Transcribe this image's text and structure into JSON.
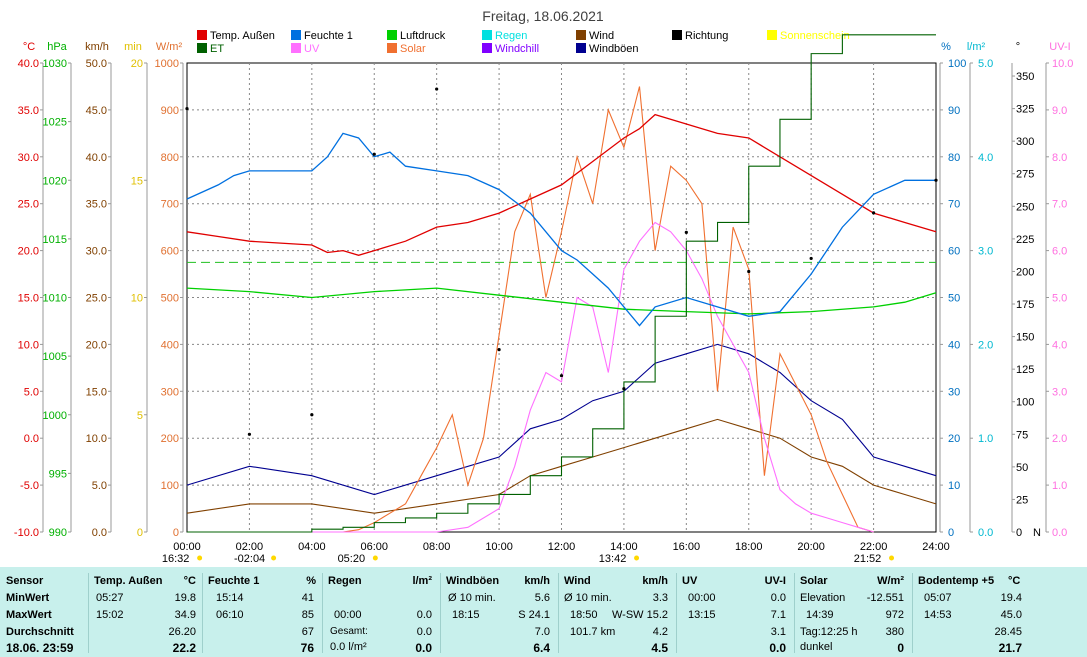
{
  "chart_data": {
    "type": "line",
    "title": "Freitag, 18.06.2021",
    "x_ticks": [
      "00:00",
      "02:00",
      "04:00",
      "06:00",
      "08:00",
      "10:00",
      "12:00",
      "14:00",
      "16:00",
      "18:00",
      "20:00",
      "22:00",
      "24:00"
    ],
    "sun_events": [
      {
        "time": "16:32",
        "x": -0.3
      },
      {
        "time": "-02:04",
        "x": 2.07
      },
      {
        "time": "05:20",
        "x": 5.33
      },
      {
        "time": "13:42",
        "x": 13.7
      },
      {
        "time": "21:52",
        "x": 21.87
      }
    ],
    "left_axes": [
      {
        "unit": "°C",
        "color": "#e00000",
        "min": -10,
        "max": 40,
        "ticks": [
          "40.0",
          "35.0",
          "30.0",
          "25.0",
          "20.0",
          "15.0",
          "10.0",
          "5.0",
          "0.0",
          "-5.0",
          "-10.0"
        ]
      },
      {
        "unit": "hPa",
        "color": "#00b000",
        "min": 990,
        "max": 1030,
        "ticks": [
          "1030",
          "1025",
          "1020",
          "1015",
          "1010",
          "1005",
          "1000",
          "995",
          "990"
        ]
      },
      {
        "unit": "km/h",
        "color": "#804000",
        "min": 0,
        "max": 50,
        "ticks": [
          "50.0",
          "45.0",
          "40.0",
          "35.0",
          "30.0",
          "25.0",
          "20.0",
          "15.0",
          "10.0",
          "5.0",
          "0.0"
        ]
      },
      {
        "unit": "min",
        "color": "#e0c000",
        "min": 0,
        "max": 20,
        "ticks": [
          "20",
          "15",
          "10",
          "5",
          "0"
        ]
      },
      {
        "unit": "W/m²",
        "color": "#e07030",
        "min": 0,
        "max": 1000,
        "ticks": [
          "1000",
          "900",
          "800",
          "700",
          "600",
          "500",
          "400",
          "300",
          "200",
          "100",
          "0"
        ]
      }
    ],
    "right_axes": [
      {
        "unit": "%",
        "color": "#0070c0",
        "min": 0,
        "max": 100,
        "ticks": [
          "100",
          "90",
          "80",
          "70",
          "60",
          "50",
          "40",
          "30",
          "20",
          "10",
          "0"
        ]
      },
      {
        "unit": "l/m²",
        "color": "#00b8d0",
        "min": 0,
        "max": 5,
        "ticks": [
          "5.0",
          "4.0",
          "3.0",
          "2.0",
          "1.0",
          "0.0"
        ]
      },
      {
        "unit": "°",
        "color": "#000000",
        "min": 0,
        "max": 360,
        "ticks": [
          "350",
          "325",
          "300",
          "275",
          "250",
          "225",
          "200",
          "175",
          "150",
          "125",
          "100",
          "75",
          "50",
          "25",
          "0"
        ],
        "zero_label": "N"
      },
      {
        "unit": "UV-I",
        "color": "#ff70e0",
        "min": 0,
        "max": 10,
        "ticks": [
          "10.0",
          "9.0",
          "8.0",
          "7.0",
          "6.0",
          "5.0",
          "4.0",
          "3.0",
          "2.0",
          "1.0",
          "0.0"
        ]
      }
    ],
    "legend": [
      {
        "label": "Temp. Außen",
        "color": "#e00000"
      },
      {
        "label": "Feuchte 1",
        "color": "#0070e0"
      },
      {
        "label": "Luftdruck",
        "color": "#00d000"
      },
      {
        "label": "Regen",
        "color": "#00e0e0"
      },
      {
        "label": "Wind",
        "color": "#804000"
      },
      {
        "label": "Richtung",
        "color": "#000000"
      },
      {
        "label": "Sonnenschein",
        "color": "#ffff00"
      },
      {
        "label": "ET",
        "color": "#006000"
      },
      {
        "label": "UV",
        "color": "#ff70ff"
      },
      {
        "label": "Solar",
        "color": "#f07030"
      },
      {
        "label": "Windchill",
        "color": "#8000ff"
      },
      {
        "label": "Windböen",
        "color": "#000090"
      }
    ],
    "series": [
      {
        "name": "Temp. Außen",
        "unit": "°C",
        "x": [
          0,
          1,
          2,
          3,
          4,
          4.5,
          5,
          5.5,
          6,
          7,
          8,
          9,
          10,
          11,
          12,
          13,
          14,
          14.5,
          15,
          16,
          17,
          18,
          19,
          20,
          21,
          22,
          23,
          24
        ],
        "y": [
          22,
          21.5,
          21,
          20.8,
          20.6,
          19.8,
          20,
          19.5,
          20,
          21,
          22.5,
          23,
          24,
          25.5,
          27,
          29.5,
          32,
          33,
          34.5,
          33.5,
          32.5,
          32,
          30,
          28,
          26,
          24,
          23,
          22
        ]
      },
      {
        "name": "Feuchte 1",
        "unit": "%",
        "x": [
          0,
          1,
          1.5,
          2,
          3,
          4,
          4.5,
          5,
          5.5,
          6,
          6.5,
          7,
          8,
          9,
          10,
          11,
          12,
          12.5,
          13,
          13.5,
          14,
          14.5,
          15,
          16,
          17,
          18,
          19,
          20,
          21,
          22,
          23,
          24
        ],
        "y": [
          71,
          74,
          76,
          77,
          77,
          77,
          80,
          85,
          84,
          80,
          81,
          78,
          77,
          76,
          73,
          68,
          60,
          58,
          55,
          52,
          48,
          44,
          48,
          50,
          48,
          46,
          47,
          55,
          65,
          72,
          75,
          75
        ]
      },
      {
        "name": "Luftdruck",
        "unit": "hPa",
        "x": [
          0,
          2,
          4,
          6,
          8,
          10,
          12,
          14,
          16,
          18,
          20,
          22,
          23,
          24
        ],
        "y": [
          1010.8,
          1010.5,
          1010,
          1010.5,
          1010.8,
          1010.2,
          1009.6,
          1009,
          1008.8,
          1008.6,
          1008.8,
          1009.2,
          1009.6,
          1010.4
        ]
      },
      {
        "name": "Solar",
        "unit": "W/m²",
        "x": [
          0,
          5,
          5.5,
          6,
          6.5,
          7,
          7.5,
          8,
          8.5,
          9,
          9.5,
          10,
          10.5,
          11,
          11.5,
          12,
          12.5,
          13,
          13.5,
          14,
          14.5,
          15,
          15.5,
          16,
          16.5,
          17,
          17.5,
          18,
          18.5,
          19,
          20,
          20.5,
          21,
          21.5,
          22
        ],
        "y": [
          0,
          0,
          5,
          20,
          40,
          60,
          120,
          180,
          250,
          100,
          200,
          420,
          640,
          720,
          500,
          640,
          800,
          700,
          900,
          820,
          950,
          600,
          780,
          750,
          700,
          300,
          650,
          560,
          120,
          380,
          250,
          150,
          80,
          10,
          0
        ]
      },
      {
        "name": "UV",
        "unit": "UV-I",
        "x": [
          0,
          8,
          9,
          10,
          10.5,
          11,
          11.5,
          12,
          12.5,
          13,
          13.5,
          14,
          14.5,
          15,
          15.5,
          16,
          16.5,
          17,
          17.5,
          18,
          18.5,
          19,
          19.5,
          20,
          20.5,
          21,
          21.5,
          22
        ],
        "y": [
          0,
          0,
          0.1,
          0.5,
          1.4,
          2.6,
          3.4,
          3.2,
          5,
          4.8,
          3.4,
          5.6,
          6.2,
          6.6,
          6.4,
          6.0,
          5.4,
          4.6,
          4.0,
          3.4,
          2.0,
          0.9,
          0.6,
          0.4,
          0.3,
          0.2,
          0.1,
          0
        ]
      },
      {
        "name": "Wind",
        "unit": "km/h",
        "x": [
          0,
          2,
          4,
          6,
          8,
          10,
          11,
          12,
          13,
          14,
          15,
          16,
          17,
          18,
          19,
          20,
          21,
          22,
          23,
          24
        ],
        "y": [
          2,
          3,
          3,
          2,
          3,
          4,
          6,
          7,
          8,
          9,
          10,
          11,
          12,
          11,
          10,
          8,
          7,
          5,
          4,
          3
        ]
      },
      {
        "name": "Windböen",
        "unit": "km/h",
        "x": [
          0,
          2,
          4,
          6,
          8,
          10,
          11,
          12,
          13,
          14,
          15,
          16,
          17,
          18,
          19,
          20,
          21,
          22,
          23,
          24
        ],
        "y": [
          5,
          7,
          6,
          4,
          6,
          8,
          11,
          12,
          14,
          15,
          18,
          19,
          20,
          19,
          17,
          14,
          12,
          8,
          7,
          6
        ]
      },
      {
        "name": "ET",
        "unit": "l/m²",
        "x": [
          0,
          3,
          4,
          5,
          6,
          7,
          8,
          9,
          10,
          11,
          12,
          13,
          14,
          15,
          16,
          17,
          18,
          19,
          20,
          21,
          22,
          24
        ],
        "y": [
          0,
          0,
          0.03,
          0.05,
          0.1,
          0.15,
          0.2,
          0.3,
          0.4,
          0.6,
          0.8,
          1.1,
          1.6,
          2.3,
          3.1,
          3.3,
          3.9,
          4.4,
          5.1,
          5.3,
          5.3,
          5.3
        ]
      },
      {
        "name": "Richtung",
        "unit": "°",
        "x": [
          0,
          2,
          4,
          6,
          8,
          10,
          12,
          14,
          16,
          18,
          20,
          22,
          24
        ],
        "y": [
          325,
          75,
          90,
          290,
          340,
          140,
          120,
          110,
          230,
          200,
          210,
          245,
          270
        ]
      }
    ],
    "reference_line": {
      "label": "Luftdruck reference",
      "value": 1013.0
    }
  },
  "stats": {
    "date_label": "18.06. 23:59",
    "row_labels": {
      "sensor": "Sensor",
      "min": "MinWert",
      "max": "MaxWert",
      "avg": "Durchschnitt"
    },
    "temp": {
      "title": "Temp. Außen",
      "unit": "°C",
      "min_time": "05:27",
      "min_val": "19.8",
      "max_time": "15:02",
      "max_val": "34.9",
      "avg": "26.20",
      "current": "22.2"
    },
    "humidity": {
      "title": "Feuchte 1",
      "unit": "%",
      "min_time": "15:14",
      "min_val": "41",
      "max_time": "06:10",
      "max_val": "85",
      "avg": "67",
      "current": "76"
    },
    "rain": {
      "title": "Regen",
      "unit": "l/m²",
      "row1_time": "00:00",
      "row1_val": "0.0",
      "row2_label": "Gesamt:",
      "row2_val": "0.0",
      "row3_label": "0.0 l/m²",
      "current": "0.0"
    },
    "gust": {
      "title": "Windböen",
      "unit": "km/h",
      "row1_label": "Ø 10 min.",
      "row1_val": "5.6",
      "row2_time": "18:15",
      "row2_val": "S 24.1",
      "avg": "7.0",
      "current": "6.4"
    },
    "wind": {
      "title": "Wind",
      "unit": "km/h",
      "row1_label": "Ø 10 min.",
      "row1_val": "3.3",
      "row2_time": "18:50",
      "row2_val": "W-SW 15.2",
      "row3_label": "101.7 km",
      "row3_val": "4.2",
      "current": "4.5"
    },
    "uv": {
      "title": "UV",
      "unit": "UV-I",
      "min_time": "00:00",
      "min_val": "0.0",
      "max_time": "13:15",
      "max_val": "7.1",
      "avg": "3.1",
      "current": "0.0"
    },
    "solar": {
      "title": "Solar",
      "unit": "W/m²",
      "row1_label": "Elevation",
      "row1_val": "-12.551",
      "row2_time": "14:39",
      "row2_val": "972",
      "row3_label": "Tag:12:25 h",
      "row3_val": "380",
      "row4_label": "dunkel",
      "current": "0"
    },
    "soil": {
      "title": "Bodentemp +5",
      "unit": "°C",
      "min_time": "05:07",
      "min_val": "19.4",
      "max_time": "14:53",
      "max_val": "45.0",
      "avg": "28.45",
      "current": "21.7"
    }
  }
}
